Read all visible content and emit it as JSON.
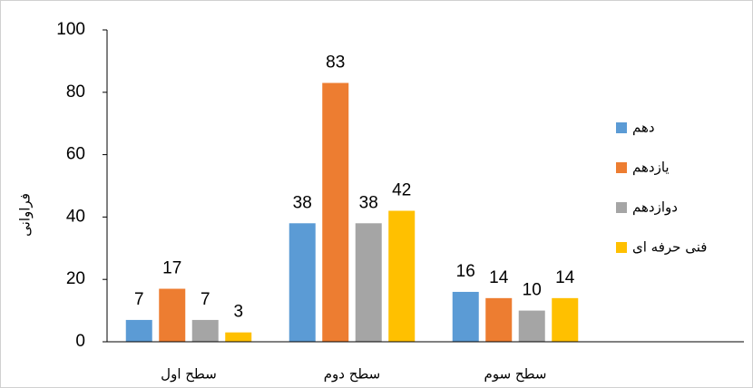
{
  "chart_data": {
    "type": "bar",
    "y_label": "فراوانی",
    "categories": [
      "سطح اول",
      "سطح دوم",
      "سطح سوم"
    ],
    "series": [
      {
        "name": "دهم",
        "color": "#5b9bd5",
        "values": [
          7,
          38,
          16
        ]
      },
      {
        "name": "یازدهم",
        "color": "#ed7d31",
        "values": [
          17,
          83,
          14
        ]
      },
      {
        "name": "دوازدهم",
        "color": "#a5a5a5",
        "values": [
          7,
          38,
          10
        ]
      },
      {
        "name": "فنی حرفه ای",
        "color": "#ffc000",
        "values": [
          3,
          42,
          14
        ]
      }
    ],
    "ylim": [
      0,
      100
    ],
    "yticks": [
      0,
      20,
      40,
      60,
      80,
      100
    ],
    "grid": false,
    "legend": "right"
  }
}
